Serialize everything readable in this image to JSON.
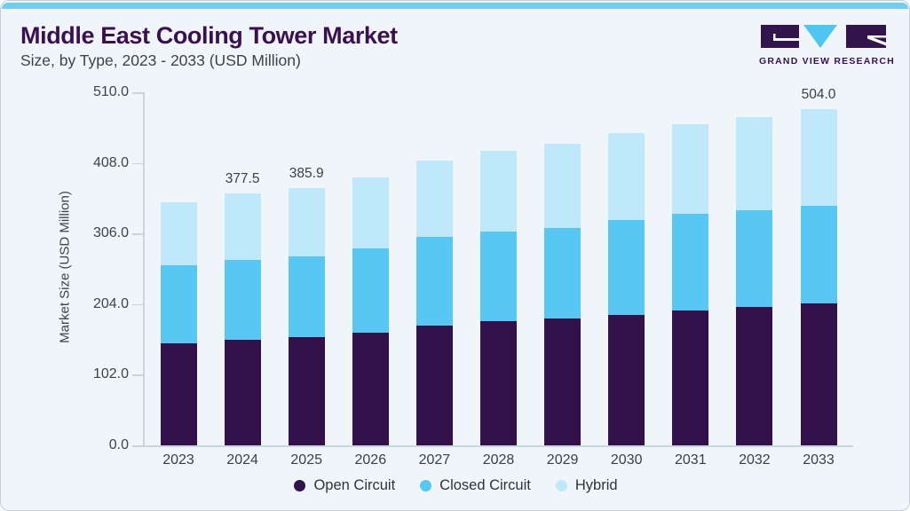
{
  "page": {
    "background_color": "#eff5f9",
    "top_bar_color": "#6ecdf4",
    "border_color": "#c3d0da"
  },
  "header": {
    "title": "Middle East Cooling Tower Market",
    "subtitle": "Size, by Type, 2023 - 2033 (USD Million)",
    "title_color": "#3b1053"
  },
  "logo": {
    "name": "grand-view-research-logo",
    "text": "GRAND VIEW RESEARCH",
    "dark_color": "#32154c",
    "accent_color": "#4fc6f2",
    "text_color": "#3b1053"
  },
  "chart_data": {
    "type": "bar",
    "stacked": true,
    "categories": [
      "2023",
      "2024",
      "2025",
      "2026",
      "2027",
      "2028",
      "2029",
      "2030",
      "2031",
      "2032",
      "2033"
    ],
    "series": [
      {
        "name": "Open Circuit",
        "color": "#33124b",
        "values": [
          153.0,
          158.8,
          162.7,
          169.4,
          180.1,
          186.8,
          190.7,
          196.1,
          202.8,
          208.1,
          213.5
        ]
      },
      {
        "name": "Closed Circuit",
        "color": "#57c8f3",
        "values": [
          117.6,
          120.0,
          121.5,
          126.8,
          133.4,
          134.7,
          136.1,
          142.7,
          144.1,
          144.1,
          146.5
        ]
      },
      {
        "name": "Hybrid",
        "color": "#bfe8fa",
        "values": [
          94.7,
          98.7,
          101.7,
          105.3,
          113.4,
          120.0,
          125.4,
          129.4,
          134.7,
          140.0,
          144.0
        ]
      }
    ],
    "total_labels": [
      "",
      "377.5",
      "385.9",
      "",
      "",
      "",
      "",
      "",
      "",
      "",
      "504.0"
    ],
    "totals": [
      365.3,
      377.5,
      385.9,
      401.5,
      426.9,
      441.5,
      452.2,
      468.2,
      481.6,
      492.2,
      504.0
    ],
    "ylabel": "Market Size (USD Million)",
    "xlabel": "",
    "yticks": [
      "0.0",
      "102.0",
      "204.0",
      "306.0",
      "408.0",
      "510.0"
    ],
    "ylim": [
      0,
      510
    ],
    "grid": false,
    "legend_position": "bottom"
  },
  "legend": {
    "items": [
      {
        "label": "Open Circuit",
        "color": "#33124b"
      },
      {
        "label": "Closed Circuit",
        "color": "#57c8f3"
      },
      {
        "label": "Hybrid",
        "color": "#bfe8fa"
      }
    ]
  }
}
